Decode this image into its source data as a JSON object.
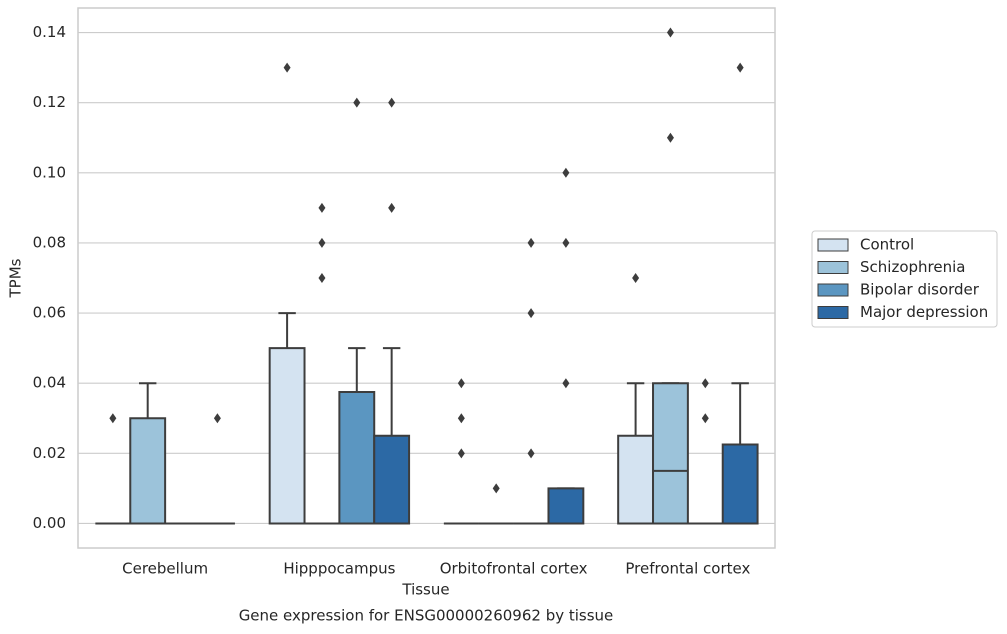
{
  "chart_data": {
    "type": "box",
    "title": "Gene expression for ENSG00000260962 by tissue",
    "x_label": "Tissue",
    "y_label": "TPMs",
    "categories": [
      "Cerebellum",
      "Hipppocampus",
      "Orbitofrontal cortex",
      "Prefrontal cortex"
    ],
    "ylim": [
      -0.007,
      0.147
    ],
    "yticks": [
      {
        "value": 0,
        "label": "0.00"
      },
      {
        "value": 0.02,
        "label": "0.02"
      },
      {
        "value": 0.04,
        "label": "0.04"
      },
      {
        "value": 0.06,
        "label": "0.06"
      },
      {
        "value": 0.08,
        "label": "0.08"
      },
      {
        "value": 0.1,
        "label": "0.10"
      },
      {
        "value": 0.12,
        "label": "0.12"
      },
      {
        "value": 0.14,
        "label": "0.14"
      }
    ],
    "grid": true,
    "legend": "right",
    "series": [
      {
        "name": "Control",
        "color": "#d4e3f1",
        "boxes": [
          {
            "low": 0,
            "q1": 0,
            "median": 0,
            "q3": 0,
            "high": 0,
            "outliers": [
              0.03
            ]
          },
          {
            "low": 0,
            "q1": 0,
            "median": 0,
            "q3": 0.05,
            "high": 0.06,
            "outliers": [
              0.13
            ]
          },
          {
            "low": 0,
            "q1": 0,
            "median": 0,
            "q3": 0,
            "high": 0,
            "outliers": [
              0.04,
              0.03,
              0.02
            ]
          },
          {
            "low": 0,
            "q1": 0,
            "median": 0,
            "q3": 0.025,
            "high": 0.04,
            "outliers": [
              0.07
            ]
          }
        ]
      },
      {
        "name": "Schizophrenia",
        "color": "#9cc3da",
        "boxes": [
          {
            "low": 0,
            "q1": 0,
            "median": 0,
            "q3": 0.03,
            "high": 0.04,
            "outliers": []
          },
          {
            "low": 0,
            "q1": 0,
            "median": 0,
            "q3": 0,
            "high": 0,
            "outliers": [
              0.09,
              0.08,
              0.07
            ]
          },
          {
            "low": 0,
            "q1": 0,
            "median": 0,
            "q3": 0,
            "high": 0,
            "outliers": [
              0.01
            ]
          },
          {
            "low": 0,
            "q1": 0,
            "median": 0.015,
            "q3": 0.04,
            "high": 0.04,
            "outliers": [
              0.14,
              0.11
            ]
          }
        ]
      },
      {
        "name": "Bipolar disorder",
        "color": "#5b96c1",
        "boxes": [
          {
            "low": 0,
            "q1": 0,
            "median": 0,
            "q3": 0,
            "high": 0,
            "outliers": []
          },
          {
            "low": 0,
            "q1": 0,
            "median": 0,
            "q3": 0.0375,
            "high": 0.05,
            "outliers": [
              0.12
            ]
          },
          {
            "low": 0,
            "q1": 0,
            "median": 0,
            "q3": 0,
            "high": 0,
            "outliers": [
              0.08,
              0.06,
              0.02
            ]
          },
          {
            "low": 0,
            "q1": 0,
            "median": 0,
            "q3": 0,
            "high": 0,
            "outliers": [
              0.04,
              0.03
            ]
          }
        ]
      },
      {
        "name": "Major depression",
        "color": "#2c69a5",
        "boxes": [
          {
            "low": 0,
            "q1": 0,
            "median": 0,
            "q3": 0,
            "high": 0,
            "outliers": [
              0.03
            ]
          },
          {
            "low": 0,
            "q1": 0,
            "median": 0,
            "q3": 0.025,
            "high": 0.05,
            "outliers": [
              0.12,
              0.09
            ]
          },
          {
            "low": 0,
            "q1": 0,
            "median": 0,
            "q3": 0.01,
            "high": 0.01,
            "outliers": [
              0.1,
              0.08,
              0.04
            ]
          },
          {
            "low": 0,
            "q1": 0,
            "median": 0,
            "q3": 0.0225,
            "high": 0.04,
            "outliers": [
              0.13
            ]
          }
        ]
      }
    ]
  }
}
